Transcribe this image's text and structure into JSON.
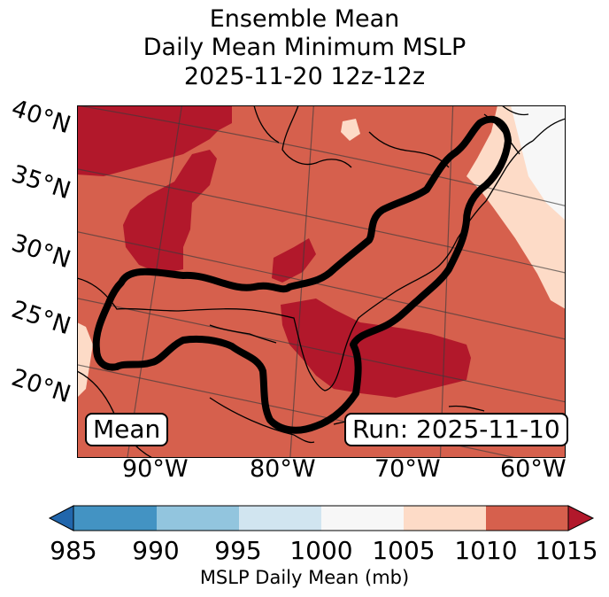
{
  "title": {
    "line1": "Ensemble Mean",
    "line2": "Daily Mean Minimum MSLP",
    "line3": "2025-11-20 12z-12z"
  },
  "map": {
    "lat_labels": [
      "40°N",
      "35°N",
      "30°N",
      "25°N",
      "20°N"
    ],
    "lon_labels": [
      "90°W",
      "80°W",
      "70°W",
      "60°W"
    ],
    "mean_box": "Mean",
    "run_box": "Run: 2025-11-10",
    "contour_color": "#000000"
  },
  "colorbar": {
    "ticks": [
      "985",
      "990",
      "995",
      "1000",
      "1005",
      "1010",
      "1015"
    ],
    "label": "MSLP Daily Mean (mb)",
    "colors": [
      "#2166ac",
      "#4393c3",
      "#92c5de",
      "#d1e5f0",
      "#f7f7f7",
      "#fddbc7",
      "#d6604d",
      "#b2182b"
    ]
  },
  "legend_colors": {
    "c1010": "#d6604d",
    "c1015": "#b2182b",
    "c1005": "#fddbc7",
    "c1000": "#f7f7f7"
  }
}
